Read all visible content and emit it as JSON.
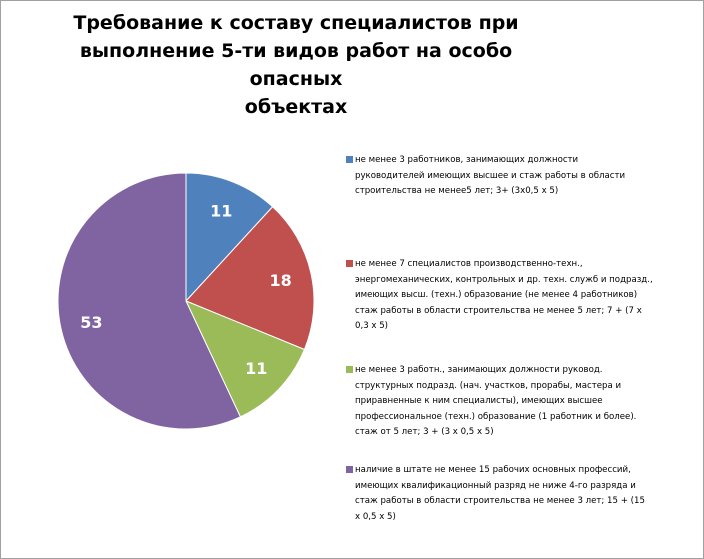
{
  "chart_data": {
    "type": "pie",
    "title": "Требование к составу специалистов при выполнение 5-ти видов работ на особо опасных объектах",
    "title_lines": [
      "Требование к составу специалистов при",
      "выполнение 5-ти видов работ на особо опасных",
      "объектах"
    ],
    "slices": [
      {
        "value": 11,
        "color": "#4f81bd",
        "label": "не менее 3 работников, занимающих должности руководителей имеющих высшее и стаж работы в области строительства не менее 5 лет; 3+ (3х0,5 х 5)",
        "label_lines": "не менее  3  работников, занимающих должности\nруководителей имеющих высшее  и  стаж работы  в  области\nстроительства не менее5 лет;   3+ (3х0,5 х 5)"
      },
      {
        "value": 18,
        "color": "#c0504d",
        "label": "не менее 7 специалистов производственно-техн., энергомеханических, контрольных и др. техн. служб и подразд., имеющих высш. (техн.) образование (не менее 4 работников) стаж работы в области строительства не менее 5 лет; 7 + (7 х 0,3 х 5)",
        "label_lines": " не менее 7  специалистов производственно-техн.,\nэнергомеханических, контрольных и др. техн. служб и подразд.,\nимеющих высш. (техн.) образование  (не  менее  4  работников)\nстаж работы в области строительства не менее 5 лет;   7 + (7 х\n0,3 х 5)"
      },
      {
        "value": 11,
        "color": "#9bbb59",
        "label": "не менее 3 работн., занимающих должности руковод. структурных подразд. (нач. участков, прорабы, мастера и приравненные к ним специалисты), имеющих высшее профессиональное (техн.) образование (1 работник и более). стаж от 5 лет; 3 + (3 х 0,5 х 5)",
        "label_lines": "не менее 3 работн., занимающих должности руковод.\nструктурных подразд. (нач. участков, прорабы, мастера и\nприравненные   к ним специалисты), имеющих   высшее\nпрофессиональное  (техн.)  образование  (1 работник и более).\nстаж от 5 лет;  3 + (3 х 0,5   х  5)"
      },
      {
        "value": 53,
        "color": "#8064a2",
        "label": "наличие в штате не менее 15 рабочих основных профессий, имеющих квалификационный разряд не ниже 4-го разряда и стаж работы в области строительства не менее 3 лет; 15 + (15 х 0,5 х 5)",
        "label_lines": "наличие  в  штате не менее 15 рабочих основных профессий,\nимеющих квалификационный  разряд  не ниже 4-го разряда и\nстаж работы в области строительства не менее 3 лет;      15  +  (15\nх 0,5 х 5)"
      }
    ],
    "legend_position": "right",
    "data_labels": true
  }
}
